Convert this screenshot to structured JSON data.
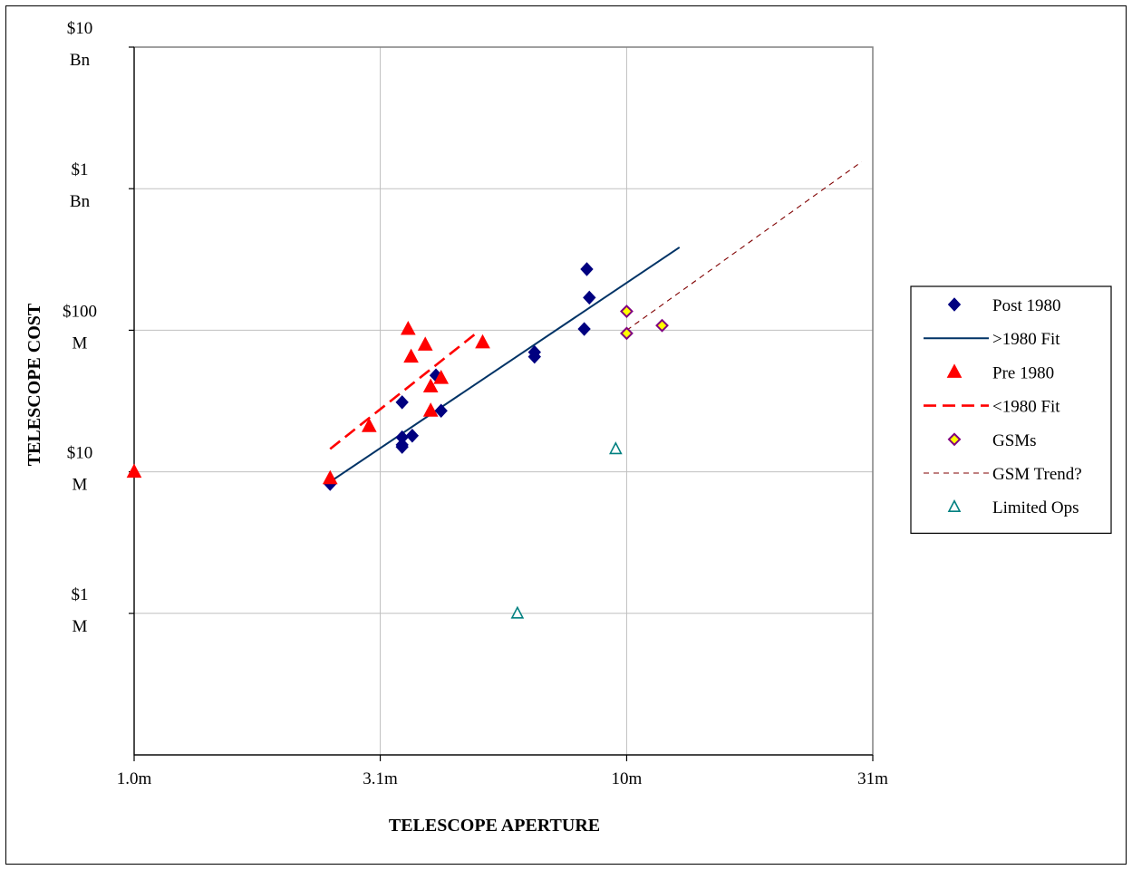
{
  "chart_data": {
    "type": "scatter",
    "xlabel": "TELESCOPE APERTURE",
    "ylabel": "TELESCOPE COST",
    "x_scale": "log",
    "y_scale": "log",
    "xlim": [
      1.0,
      31.6
    ],
    "ylim": [
      100000,
      10000000000
    ],
    "grid": true,
    "legend_position": "right",
    "x_ticks": [
      {
        "value": 1.0,
        "label": "1.0m"
      },
      {
        "value": 3.16,
        "label": "3.1m"
      },
      {
        "value": 10,
        "label": "10m"
      },
      {
        "value": 31.6,
        "label": "31m"
      }
    ],
    "y_ticks": [
      {
        "value": 1000000,
        "label": [
          "$1",
          "M"
        ]
      },
      {
        "value": 10000000,
        "label": [
          "$10",
          "M"
        ]
      },
      {
        "value": 100000000,
        "label": [
          "$100",
          "M"
        ]
      },
      {
        "value": 1000000000,
        "label": [
          "$1",
          "Bn"
        ]
      },
      {
        "value": 10000000000,
        "label": [
          "$10",
          "Bn"
        ]
      }
    ],
    "series": [
      {
        "name": "Post 1980",
        "kind": "points",
        "marker": "diamond",
        "color": "#000080",
        "points": [
          [
            2.5,
            8200000
          ],
          [
            3.5,
            31000000
          ],
          [
            3.5,
            17500000
          ],
          [
            3.5,
            15500000
          ],
          [
            3.5,
            15000000
          ],
          [
            3.67,
            18000000
          ],
          [
            4.1,
            48000000
          ],
          [
            4.2,
            27000000
          ],
          [
            6.5,
            70000000
          ],
          [
            6.5,
            65000000
          ],
          [
            8.2,
            102000000
          ],
          [
            8.3,
            270000000
          ],
          [
            8.4,
            170000000
          ]
        ]
      },
      {
        "name": ">1980 Fit",
        "kind": "line",
        "style": "solid",
        "color": "#003366",
        "points": [
          [
            2.5,
            8500000
          ],
          [
            12.8,
            385000000
          ]
        ]
      },
      {
        "name": "Pre 1980",
        "kind": "points",
        "marker": "triangle",
        "color": "#ff0000",
        "points": [
          [
            1.0,
            10000000
          ],
          [
            2.5,
            9000000
          ],
          [
            3.0,
            21000000
          ],
          [
            3.6,
            102000000
          ],
          [
            3.65,
            65000000
          ],
          [
            3.9,
            79000000
          ],
          [
            4.0,
            40000000
          ],
          [
            4.0,
            27000000
          ],
          [
            4.2,
            46000000
          ],
          [
            5.1,
            82000000
          ]
        ]
      },
      {
        "name": "<1980 Fit",
        "kind": "line",
        "style": "dashed",
        "color": "#ff0000",
        "points": [
          [
            2.5,
            14500000
          ],
          [
            5.0,
            98000000
          ]
        ]
      },
      {
        "name": "GSMs",
        "kind": "points",
        "marker": "diamond-open",
        "color": "#800080",
        "fill": "#ffff00",
        "points": [
          [
            10.0,
            136000000
          ],
          [
            10.0,
            95000000
          ],
          [
            11.8,
            108000000
          ]
        ]
      },
      {
        "name": "GSM Trend?",
        "kind": "line",
        "style": "fine-dashed",
        "color": "#800000",
        "points": [
          [
            10.0,
            100000000
          ],
          [
            30.0,
            1550000000
          ]
        ]
      },
      {
        "name": "Limited Ops",
        "kind": "points",
        "marker": "triangle-open",
        "color": "#008080",
        "points": [
          [
            6.0,
            1000000
          ],
          [
            9.5,
            14500000
          ]
        ]
      }
    ]
  },
  "colors": {
    "post1980": "#000080",
    "post1980_fit": "#003366",
    "pre1980": "#ff0000",
    "gsm_edge": "#800080",
    "gsm_fill": "#ffff00",
    "gsm_trend": "#800000",
    "limited_ops": "#008080",
    "grid": "#c0c0c0"
  }
}
